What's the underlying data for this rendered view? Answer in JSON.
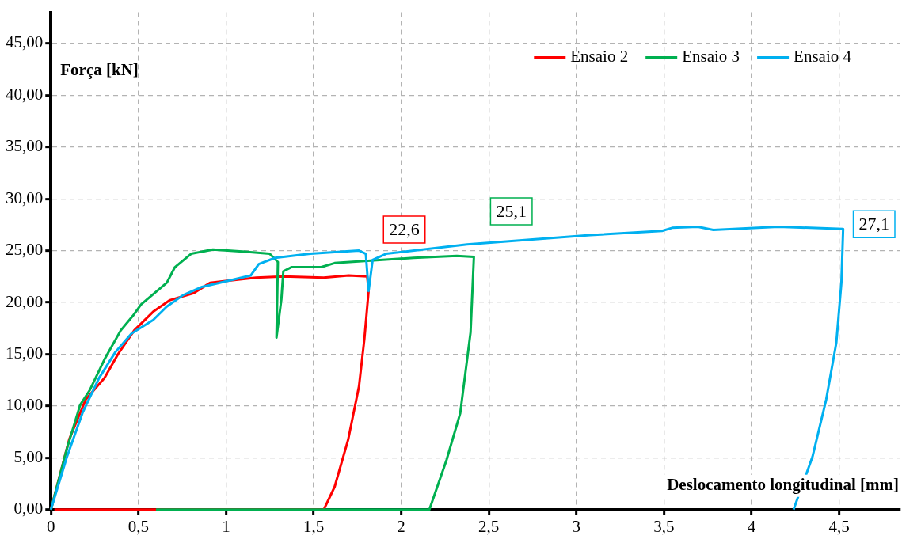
{
  "chart_data": {
    "type": "line",
    "xlabel": "Deslocamento longitudinal [mm]",
    "ylabel": "Força [kN]",
    "xlim": [
      0,
      4.85
    ],
    "ylim": [
      0,
      48
    ],
    "xticks": [
      0,
      {
        "value": 0.5,
        "label": "0,5"
      },
      1,
      {
        "value": 1.5,
        "label": "1,5"
      },
      2,
      {
        "value": 2.5,
        "label": "2,5"
      },
      3,
      {
        "value": 3.5,
        "label": "3,5"
      },
      4,
      {
        "value": 4.5,
        "label": "4,5"
      }
    ],
    "yticks": [
      {
        "value": 0,
        "label": "0,00"
      },
      {
        "value": 5,
        "label": "5,00"
      },
      {
        "value": 10,
        "label": "10,00"
      },
      {
        "value": 15,
        "label": "15,00"
      },
      {
        "value": 20,
        "label": "20,00"
      },
      {
        "value": 25,
        "label": "25,00"
      },
      {
        "value": 30,
        "label": "30,00"
      },
      {
        "value": 35,
        "label": "35,00"
      },
      {
        "value": 40,
        "label": "40,00"
      },
      {
        "value": 45,
        "label": "45,00"
      }
    ],
    "grid": true,
    "legend": "top right",
    "marker": "none",
    "line_style": "solid",
    "series": [
      {
        "name": "Ensaio 2",
        "color": "#ff0000",
        "x": [
          0,
          0.105,
          0.198,
          0.306,
          0.383,
          0.476,
          0.584,
          0.677,
          0.816,
          0.909,
          1.017,
          1.172,
          1.327,
          1.558,
          1.7,
          1.806,
          1.814,
          1.79,
          1.759,
          1.698,
          1.62,
          1.558,
          0.02
        ],
        "values": [
          0,
          6.8,
          10.6,
          12.7,
          15.0,
          17.3,
          19.1,
          20.2,
          20.9,
          21.9,
          22.1,
          22.4,
          22.5,
          22.4,
          22.6,
          22.5,
          21.1,
          16.5,
          11.9,
          6.8,
          2.2,
          0,
          0
        ]
      },
      {
        "name": "Ensaio 3",
        "color": "#00b050",
        "x": [
          0,
          0.09,
          0.167,
          0.221,
          0.306,
          0.399,
          0.468,
          0.515,
          0.662,
          0.708,
          0.801,
          0.925,
          1.11,
          1.249,
          1.296,
          1.288,
          1.316,
          1.327,
          1.373,
          1.543,
          1.62,
          2.07,
          2.317,
          2.415,
          2.396,
          2.337,
          2.259,
          2.161,
          0.6
        ],
        "values": [
          0,
          5.8,
          10.1,
          11.5,
          14.5,
          17.3,
          18.7,
          19.8,
          21.9,
          23.4,
          24.7,
          25.1,
          24.9,
          24.7,
          23.9,
          16.6,
          20.3,
          23.0,
          23.4,
          23.4,
          23.8,
          24.3,
          24.5,
          24.4,
          17.1,
          9.3,
          4.8,
          0,
          0
        ]
      },
      {
        "name": "Ensaio 4",
        "color": "#00b0f0",
        "x": [
          0,
          0.09,
          0.182,
          0.275,
          0.368,
          0.461,
          0.584,
          0.662,
          0.755,
          0.863,
          1.017,
          1.141,
          1.187,
          1.28,
          1.481,
          1.759,
          1.798,
          1.814,
          1.837,
          1.914,
          2.376,
          3.079,
          3.489,
          3.547,
          3.693,
          3.782,
          4.153,
          4.523,
          4.513,
          4.484,
          4.426,
          4.348,
          4.24
        ],
        "values": [
          0,
          5.0,
          9.4,
          12.7,
          15.2,
          17.0,
          18.3,
          19.6,
          20.7,
          21.5,
          22.1,
          22.6,
          23.7,
          24.3,
          24.7,
          25.0,
          24.7,
          21.1,
          24.1,
          24.7,
          25.6,
          26.5,
          26.9,
          27.2,
          27.3,
          27.0,
          27.3,
          27.1,
          21.9,
          16.1,
          10.6,
          5.1,
          0
        ]
      }
    ],
    "annotations": [
      "22,6",
      "25,1",
      "27,1"
    ]
  }
}
